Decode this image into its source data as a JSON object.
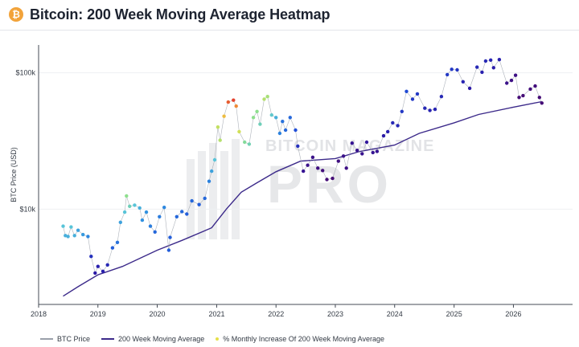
{
  "header": {
    "logo_glyph": "₿",
    "title": "Bitcoin: 200 Week Moving Average Heatmap"
  },
  "watermark": {
    "line1": "BITCOIN MAGAZINE",
    "line2": "PRO"
  },
  "colors": {
    "ma_line": "#3c2a8a",
    "price_line": "#9aa0aa",
    "heat_scale": [
      "#4b0a6e",
      "#2a1aa8",
      "#1f4ed8",
      "#2f8fe0",
      "#58c4d8",
      "#8fe08a",
      "#e6e048",
      "#f2a03a",
      "#e0302a"
    ],
    "grid": "#eef0f3",
    "axis": "#444b55"
  },
  "chart_data": {
    "type": "scatter",
    "title": "Bitcoin: 200 Week Moving Average Heatmap",
    "ylabel": "BTC Price (USD)",
    "xlabel": "",
    "y_scale": "log",
    "ylim": [
      2000,
      160000
    ],
    "xlim": [
      "2018-01-01",
      "2026-12-31"
    ],
    "x_ticks": [
      "2018",
      "2019",
      "2020",
      "2021",
      "2022",
      "2023",
      "2024",
      "2025",
      "2026"
    ],
    "y_ticks": [
      {
        "value": 100000,
        "label": "$100k"
      },
      {
        "value": 10000,
        "label": "$10k"
      }
    ],
    "legend": {
      "placement": "bottom",
      "items": [
        {
          "label": "BTC Price",
          "kind": "line",
          "color": "#9aa0aa"
        },
        {
          "label": "200 Week Moving Average",
          "kind": "line",
          "color": "#3c2a8a"
        },
        {
          "label": "% Monthly Increase Of 200 Week Moving Average",
          "kind": "dot",
          "color": "#e6e048"
        }
      ]
    },
    "series": [
      {
        "name": "BTC Price",
        "points": [
          [
            "2018-06-01",
            7500,
            0.5
          ],
          [
            "2018-06-15",
            6400,
            0.45
          ],
          [
            "2018-07-01",
            6300,
            0.45
          ],
          [
            "2018-07-20",
            7400,
            0.5
          ],
          [
            "2018-08-10",
            6400,
            0.45
          ],
          [
            "2018-09-01",
            7000,
            0.42
          ],
          [
            "2018-10-01",
            6500,
            0.4
          ],
          [
            "2018-11-01",
            6300,
            0.36
          ],
          [
            "2018-11-20",
            4500,
            0.18
          ],
          [
            "2018-12-15",
            3400,
            0.12
          ],
          [
            "2019-01-01",
            3800,
            0.14
          ],
          [
            "2019-02-01",
            3500,
            0.14
          ],
          [
            "2019-03-01",
            3900,
            0.16
          ],
          [
            "2019-04-01",
            5200,
            0.28
          ],
          [
            "2019-05-01",
            5700,
            0.32
          ],
          [
            "2019-05-20",
            8000,
            0.42
          ],
          [
            "2019-06-15",
            9500,
            0.5
          ],
          [
            "2019-06-26",
            12500,
            0.62
          ],
          [
            "2019-07-15",
            10500,
            0.55
          ],
          [
            "2019-08-15",
            10700,
            0.5
          ],
          [
            "2019-09-15",
            10200,
            0.45
          ],
          [
            "2019-10-01",
            8300,
            0.38
          ],
          [
            "2019-10-26",
            9500,
            0.38
          ],
          [
            "2019-11-20",
            7500,
            0.34
          ],
          [
            "2019-12-18",
            6800,
            0.3
          ],
          [
            "2020-01-15",
            8800,
            0.34
          ],
          [
            "2020-02-13",
            10300,
            0.36
          ],
          [
            "2020-03-12",
            5000,
            0.28
          ],
          [
            "2020-03-20",
            6200,
            0.28
          ],
          [
            "2020-04-30",
            8800,
            0.3
          ],
          [
            "2020-06-01",
            9600,
            0.3
          ],
          [
            "2020-07-01",
            9200,
            0.28
          ],
          [
            "2020-08-01",
            11500,
            0.3
          ],
          [
            "2020-09-15",
            10800,
            0.28
          ],
          [
            "2020-10-20",
            12000,
            0.3
          ],
          [
            "2020-11-15",
            16000,
            0.35
          ],
          [
            "2020-12-01",
            19000,
            0.42
          ],
          [
            "2020-12-20",
            23000,
            0.5
          ],
          [
            "2021-01-08",
            40000,
            0.7
          ],
          [
            "2021-01-22",
            32000,
            0.68
          ],
          [
            "2021-02-15",
            48000,
            0.82
          ],
          [
            "2021-03-13",
            61000,
            0.95
          ],
          [
            "2021-04-14",
            63000,
            0.98
          ],
          [
            "2021-05-01",
            57000,
            0.9
          ],
          [
            "2021-05-19",
            37000,
            0.72
          ],
          [
            "2021-06-22",
            31000,
            0.6
          ],
          [
            "2021-07-20",
            30000,
            0.56
          ],
          [
            "2021-08-15",
            47000,
            0.62
          ],
          [
            "2021-09-06",
            52000,
            0.62
          ],
          [
            "2021-09-25",
            42000,
            0.55
          ],
          [
            "2021-10-20",
            64000,
            0.68
          ],
          [
            "2021-11-10",
            67000,
            0.66
          ],
          [
            "2021-12-05",
            49000,
            0.52
          ],
          [
            "2022-01-01",
            47000,
            0.45
          ],
          [
            "2022-01-24",
            36000,
            0.35
          ],
          [
            "2022-02-10",
            44000,
            0.32
          ],
          [
            "2022-03-01",
            38000,
            0.3
          ],
          [
            "2022-03-29",
            47000,
            0.3
          ],
          [
            "2022-05-01",
            38000,
            0.25
          ],
          [
            "2022-05-15",
            29000,
            0.18
          ],
          [
            "2022-06-18",
            19000,
            0.08
          ],
          [
            "2022-07-15",
            21000,
            0.06
          ],
          [
            "2022-08-15",
            24000,
            0.06
          ],
          [
            "2022-09-15",
            20000,
            0.04
          ],
          [
            "2022-10-15",
            19200,
            0.03
          ],
          [
            "2022-11-10",
            16500,
            0.02
          ],
          [
            "2022-12-15",
            16800,
            0.02
          ],
          [
            "2023-01-20",
            22500,
            0.04
          ],
          [
            "2023-02-20",
            24500,
            0.06
          ],
          [
            "2023-03-10",
            20000,
            0.05
          ],
          [
            "2023-04-14",
            30500,
            0.08
          ],
          [
            "2023-05-15",
            27000,
            0.07
          ],
          [
            "2023-06-15",
            25500,
            0.07
          ],
          [
            "2023-07-13",
            31000,
            0.1
          ],
          [
            "2023-08-20",
            26000,
            0.08
          ],
          [
            "2023-09-15",
            26500,
            0.08
          ],
          [
            "2023-10-25",
            34500,
            0.12
          ],
          [
            "2023-11-20",
            37000,
            0.14
          ],
          [
            "2023-12-20",
            43000,
            0.16
          ],
          [
            "2024-01-20",
            41000,
            0.16
          ],
          [
            "2024-02-15",
            52000,
            0.2
          ],
          [
            "2024-03-14",
            73000,
            0.24
          ],
          [
            "2024-04-20",
            64000,
            0.2
          ],
          [
            "2024-05-20",
            70000,
            0.2
          ],
          [
            "2024-07-05",
            55000,
            0.16
          ],
          [
            "2024-08-05",
            53000,
            0.15
          ],
          [
            "2024-09-06",
            54000,
            0.15
          ],
          [
            "2024-10-15",
            67000,
            0.16
          ],
          [
            "2024-11-20",
            97000,
            0.2
          ],
          [
            "2024-12-17",
            106000,
            0.2
          ],
          [
            "2025-01-20",
            105000,
            0.19
          ],
          [
            "2025-02-25",
            86000,
            0.15
          ],
          [
            "2025-04-07",
            77000,
            0.12
          ],
          [
            "2025-05-22",
            110000,
            0.16
          ],
          [
            "2025-06-22",
            101000,
            0.14
          ],
          [
            "2025-07-14",
            122000,
            0.16
          ],
          [
            "2025-08-14",
            124000,
            0.15
          ],
          [
            "2025-09-01",
            109000,
            0.13
          ],
          [
            "2025-10-06",
            125000,
            0.14
          ],
          [
            "2025-11-21",
            84000,
            0.06
          ],
          [
            "2025-12-20",
            88000,
            0.05
          ],
          [
            "2026-01-14",
            96000,
            0.05
          ],
          [
            "2026-02-05",
            66000,
            0.02
          ],
          [
            "2026-03-01",
            68000,
            0.02
          ],
          [
            "2026-04-15",
            76000,
            0.03
          ],
          [
            "2026-05-15",
            80000,
            0.03
          ],
          [
            "2026-06-10",
            66000,
            0.02
          ],
          [
            "2026-06-25",
            60000,
            0.02
          ]
        ]
      },
      {
        "name": "200 Week Moving Average",
        "points": [
          [
            "2018-06-01",
            2300
          ],
          [
            "2018-09-01",
            2700
          ],
          [
            "2019-01-01",
            3300
          ],
          [
            "2019-06-01",
            3800
          ],
          [
            "2020-01-01",
            5000
          ],
          [
            "2020-06-01",
            5900
          ],
          [
            "2020-12-01",
            7300
          ],
          [
            "2021-03-01",
            10000
          ],
          [
            "2021-06-01",
            13300
          ],
          [
            "2021-09-01",
            15500
          ],
          [
            "2022-01-01",
            18800
          ],
          [
            "2022-06-01",
            22500
          ],
          [
            "2023-01-01",
            23500
          ],
          [
            "2023-06-01",
            26500
          ],
          [
            "2024-01-01",
            29500
          ],
          [
            "2024-06-01",
            36000
          ],
          [
            "2025-01-01",
            43000
          ],
          [
            "2025-06-01",
            49500
          ],
          [
            "2026-01-01",
            56000
          ],
          [
            "2026-06-25",
            61500
          ]
        ]
      }
    ]
  }
}
